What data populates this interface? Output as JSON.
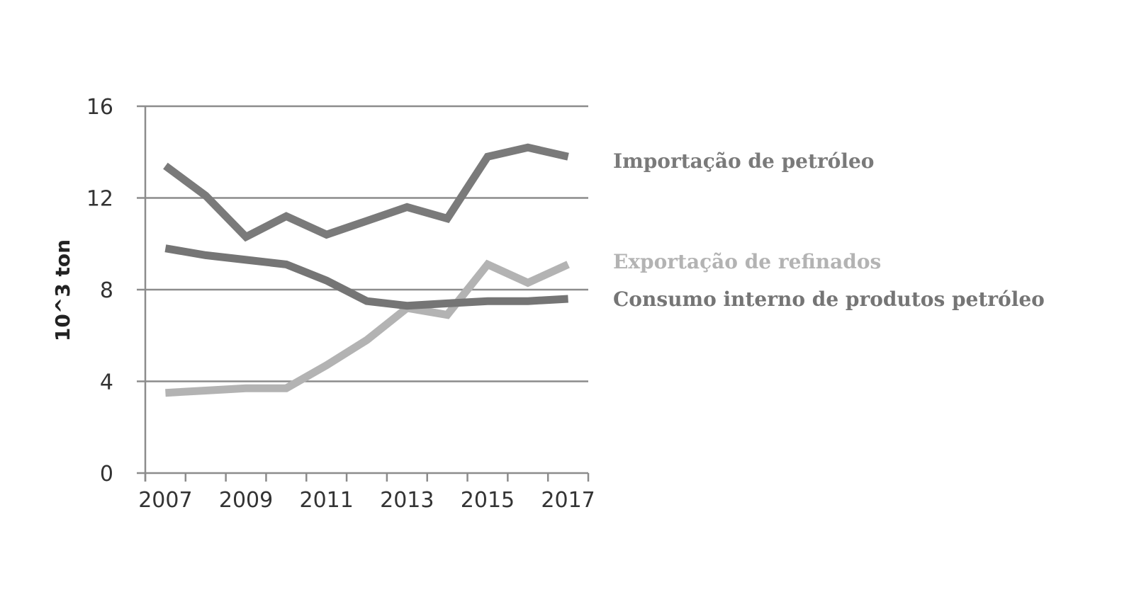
{
  "chart_data": {
    "type": "line",
    "title": "",
    "xlabel": "",
    "ylabel": "10^3 ton",
    "x": [
      2007,
      2008,
      2009,
      2010,
      2011,
      2012,
      2013,
      2014,
      2015,
      2016,
      2017
    ],
    "xticks": [
      "2007",
      "2009",
      "2011",
      "2013",
      "2015",
      "2017"
    ],
    "yticks": [
      "0",
      "4",
      "8",
      "12",
      "16"
    ],
    "xlim": [
      2006.5,
      2017.5
    ],
    "ylim": [
      0,
      16
    ],
    "grid": "horizontal",
    "legend": "inline-right",
    "series": [
      {
        "name": "Importação de petróleo",
        "color": "#7a7a7a",
        "values": [
          13.4,
          12.1,
          10.3,
          11.2,
          10.4,
          11.0,
          11.6,
          11.1,
          13.8,
          14.2,
          13.8
        ]
      },
      {
        "name": "Exportação de refinados",
        "color": "#b3b3b3",
        "values": [
          3.5,
          3.6,
          3.7,
          3.7,
          4.7,
          5.8,
          7.2,
          6.9,
          9.1,
          8.3,
          9.1
        ]
      },
      {
        "name": "Consumo interno de produtos petróleo",
        "color": "#757575",
        "values": [
          9.8,
          9.5,
          9.3,
          9.1,
          8.4,
          7.5,
          7.3,
          7.4,
          7.5,
          7.5,
          7.6
        ]
      }
    ]
  }
}
